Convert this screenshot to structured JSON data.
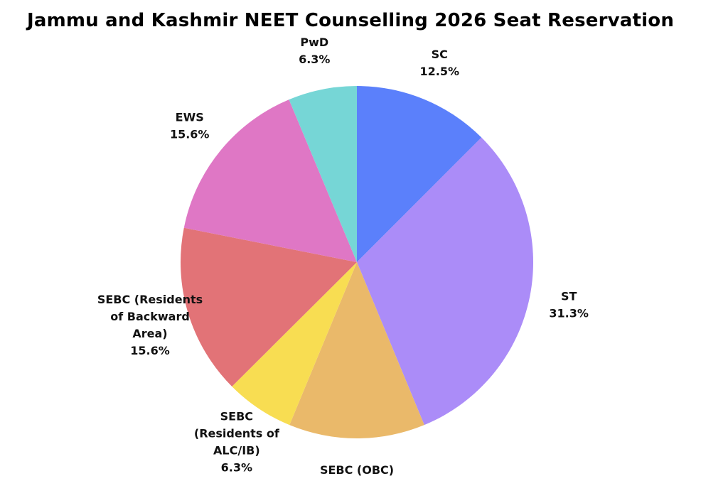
{
  "chart_data": {
    "type": "pie",
    "title": "Jammu and Kashmir NEET Counselling 2026 Seat Reservation",
    "start_angle": "12 o'clock",
    "direction": "clockwise",
    "slices": [
      {
        "name": "SC",
        "label_lines": [
          "SC"
        ],
        "value": 12.5,
        "value_label": "12.5%",
        "color": "#5b80fb"
      },
      {
        "name": "ST",
        "label_lines": [
          "ST"
        ],
        "value": 31.3,
        "value_label": "31.3%",
        "color": "#ab8cf8"
      },
      {
        "name": "SEBC (OBC)",
        "label_lines": [
          "SEBC (OBC)"
        ],
        "value": 12.5,
        "value_label": "12.5%",
        "color": "#eab96a"
      },
      {
        "name": "SEBC (Residents of ALC/IB)",
        "label_lines": [
          "SEBC",
          "(Residents of",
          "ALC/IB)"
        ],
        "value": 6.3,
        "value_label": "6.3%",
        "color": "#f8dd52"
      },
      {
        "name": "SEBC (Residents of Backward Area)",
        "label_lines": [
          "SEBC (Residents",
          "of Backward",
          "Area)"
        ],
        "value": 15.6,
        "value_label": "15.6%",
        "color": "#e27377"
      },
      {
        "name": "EWS",
        "label_lines": [
          "EWS"
        ],
        "value": 15.6,
        "value_label": "15.6%",
        "color": "#df77c5"
      },
      {
        "name": "PwD",
        "label_lines": [
          "PwD"
        ],
        "value": 6.3,
        "value_label": "6.3%",
        "color": "#76d6d6"
      }
    ]
  }
}
